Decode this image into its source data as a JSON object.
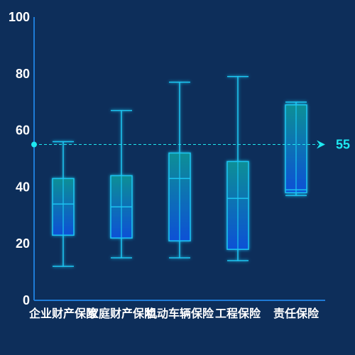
{
  "colors": {
    "background": "#0d2e5a",
    "axis": "#1e7bd6",
    "box_stroke": "#1fc6f2",
    "box_fill_top": "#0e8f96",
    "box_fill_bottom": "#0b50d6",
    "mark_line": "#1ee8f0",
    "text": "#ffffff"
  },
  "chart_data": {
    "type": "boxplot",
    "title": "",
    "xlabel": "",
    "ylabel": "",
    "ylim": [
      0,
      100
    ],
    "y_ticks": [
      "0",
      "20",
      "40",
      "60",
      "80",
      "100"
    ],
    "grid": false,
    "categories": [
      "企业财产保险",
      "家庭财产保险",
      "机动车辆保险",
      "工程保险",
      "责任保险"
    ],
    "boxes": [
      {
        "category": "企业财产保险",
        "min": 12,
        "q1": 23,
        "median": 34,
        "q3": 43,
        "max": 56
      },
      {
        "category": "家庭财产保险",
        "min": 15,
        "q1": 22,
        "median": 33,
        "q3": 44,
        "max": 67
      },
      {
        "category": "机动车辆保险",
        "min": 15,
        "q1": 21,
        "median": 43,
        "q3": 52,
        "max": 77
      },
      {
        "category": "工程保险",
        "min": 14,
        "q1": 18,
        "median": 36,
        "q3": 49,
        "max": 79
      },
      {
        "category": "责任保险",
        "min": 37,
        "q1": 38,
        "median": 39,
        "q3": 69,
        "max": 70
      }
    ],
    "mark_line": {
      "value": 55,
      "label": "55"
    }
  }
}
